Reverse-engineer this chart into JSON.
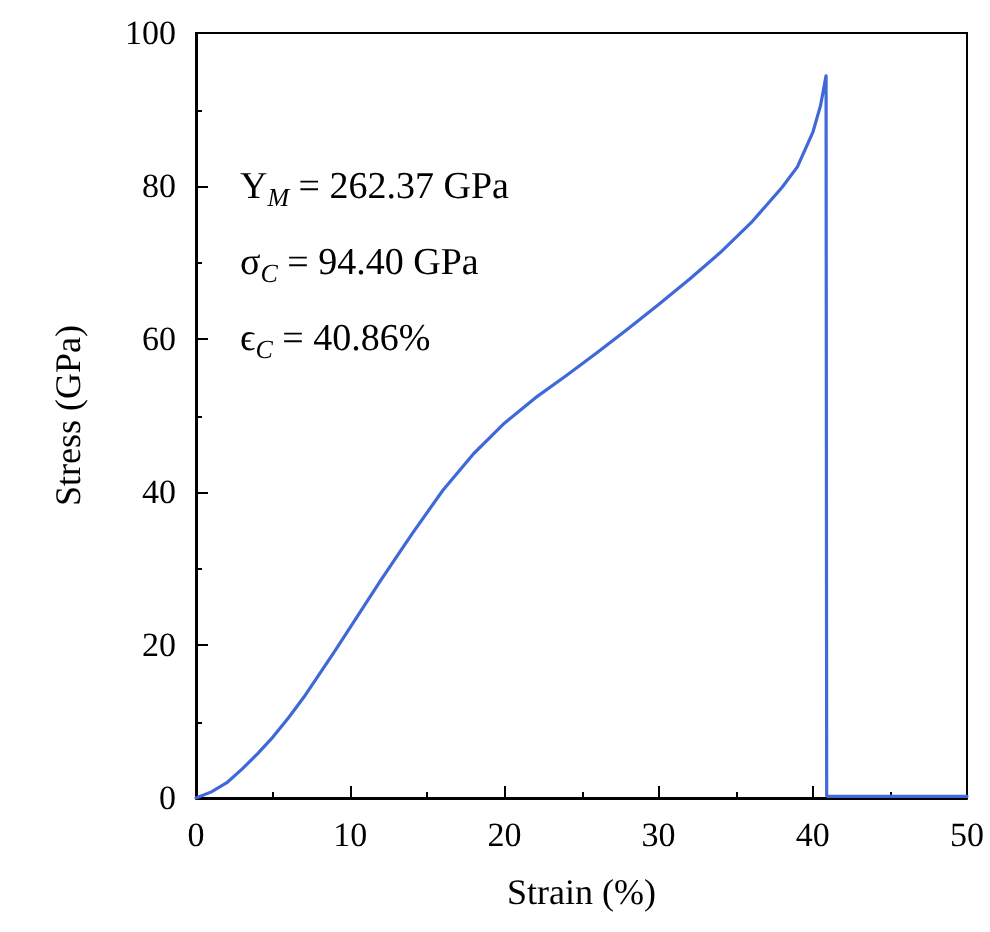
{
  "chart_data": {
    "type": "line",
    "xlabel": "Strain (%)",
    "ylabel": "Stress (GPa)",
    "xlim": [
      0,
      50
    ],
    "ylim": [
      0,
      100
    ],
    "xticks": [
      0,
      10,
      20,
      30,
      40,
      50
    ],
    "yticks": [
      0,
      20,
      40,
      60,
      80,
      100
    ],
    "grid": false,
    "marker": "none",
    "line_style": "solid",
    "annotations": [
      "Y$_{M}$ = 262.37 GPa",
      "σ$_{C}$ = 94.40 GPa",
      "ϵ$_{C}$ = 40.86%"
    ],
    "series": [
      {
        "color": "#3f68d8",
        "x": [
          0,
          1,
          2,
          3,
          4,
          5,
          6,
          7,
          8,
          9,
          10,
          12,
          14,
          16,
          18,
          20,
          22,
          24,
          26,
          28,
          30,
          32,
          34,
          36,
          38,
          39,
          40,
          40.5,
          40.86,
          40.9,
          41,
          45,
          50
        ],
        "values": [
          0,
          0.8,
          2,
          3.8,
          5.8,
          8,
          10.5,
          13.2,
          16.2,
          19.2,
          22.3,
          28.5,
          34.5,
          40.2,
          45,
          49,
          52.3,
          55.2,
          58.2,
          61.3,
          64.5,
          67.8,
          71.3,
          75.2,
          79.8,
          82.5,
          87,
          90.5,
          94.4,
          0.3,
          0.2,
          0.2,
          0.2
        ]
      }
    ]
  }
}
